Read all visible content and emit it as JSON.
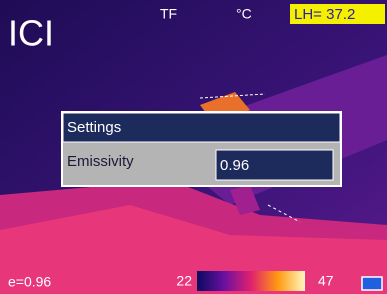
{
  "header": {
    "logo": "ICI",
    "mode": "TF",
    "unit": "°C",
    "readout": "LH= 37.2"
  },
  "dialog": {
    "title": "Settings",
    "field_label": "Emissivity",
    "field_value": "0.96"
  },
  "footer": {
    "emissivity": "e=0.96",
    "scale_min": "22",
    "scale_max": "47"
  }
}
